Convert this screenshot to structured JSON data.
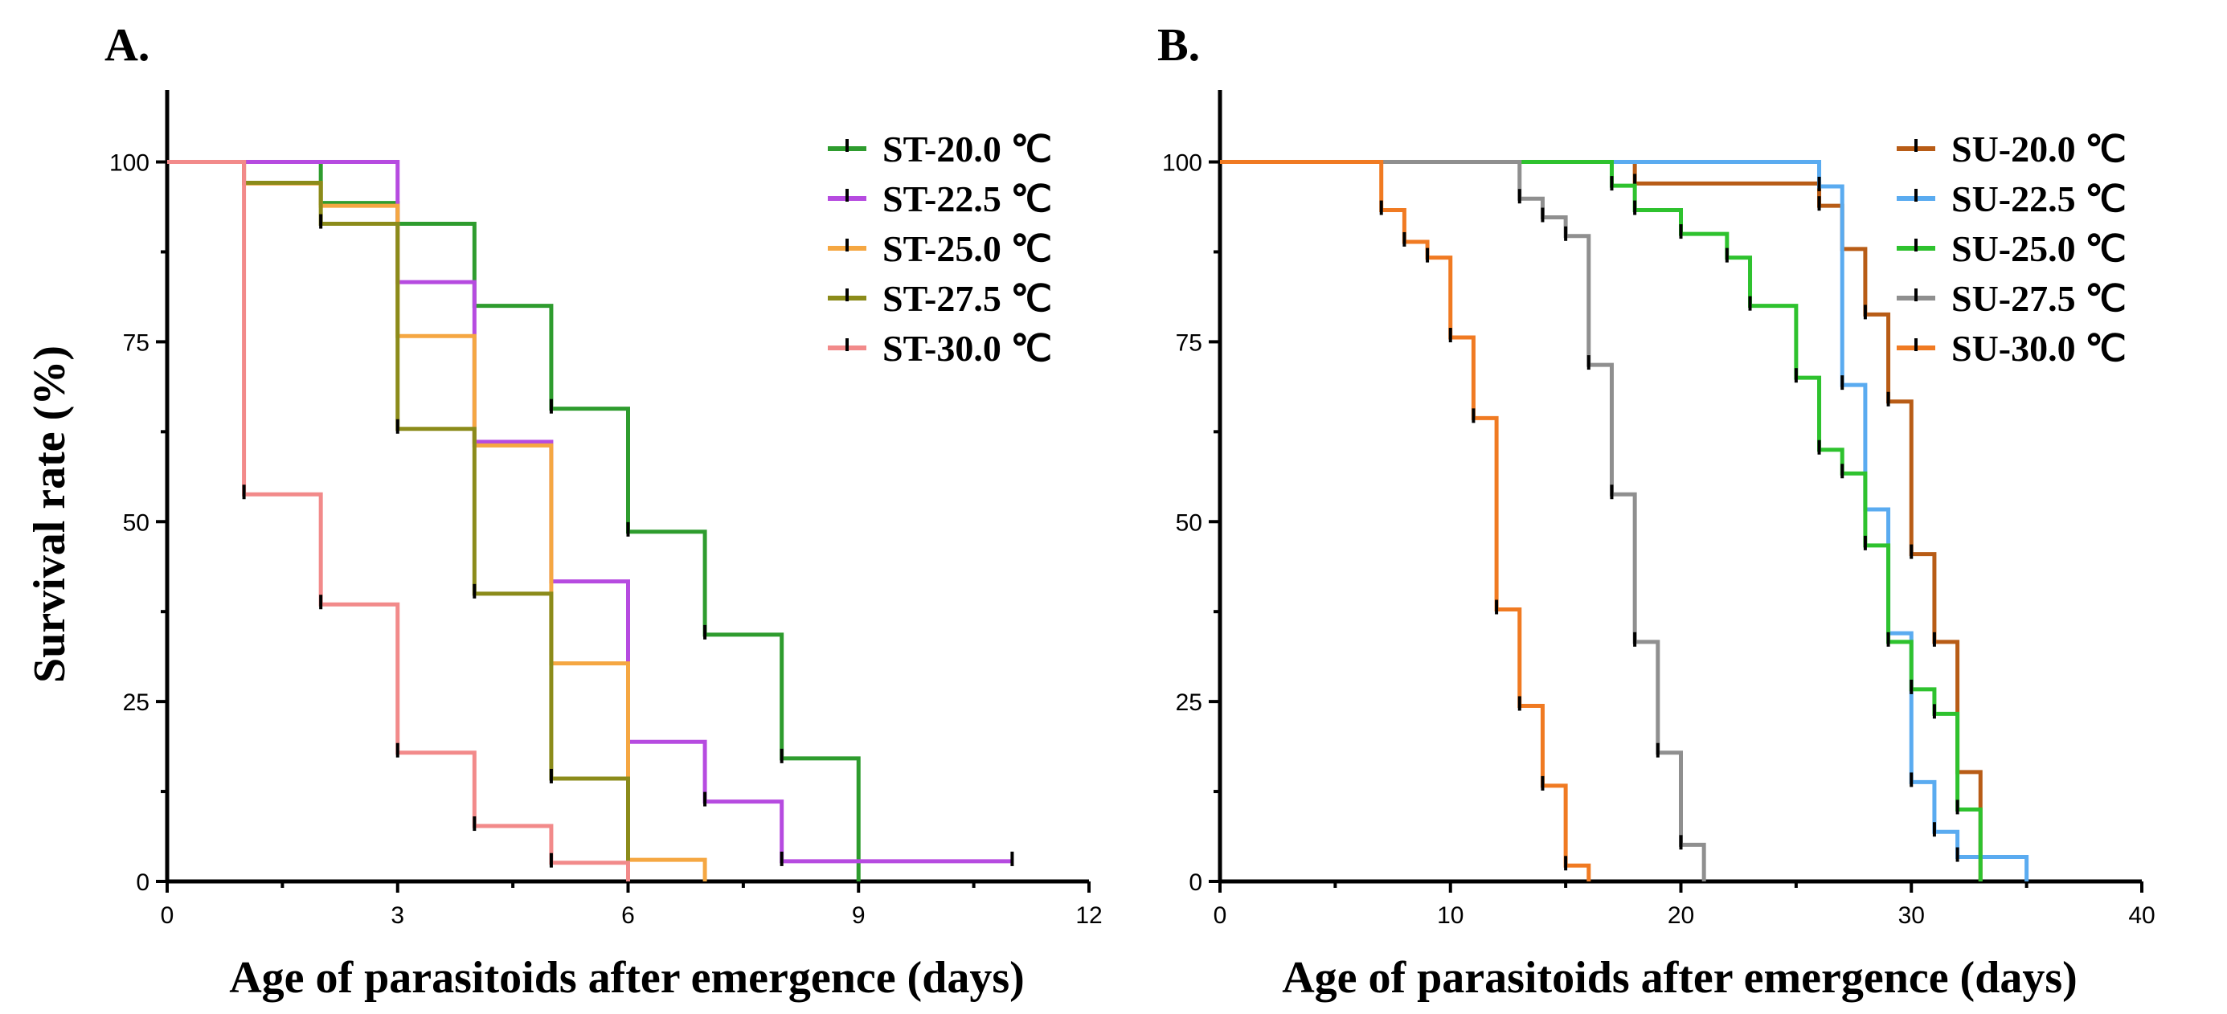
{
  "chart_data": [
    {
      "type": "line",
      "step": "survival",
      "panel_label": "A.",
      "title": "",
      "xlabel": "Age of parasitoids after emergence (days)",
      "ylabel": "Survival rate (%)",
      "xlim": [
        0,
        12
      ],
      "ylim": [
        0,
        110
      ],
      "xticks": [
        0,
        3,
        6,
        9,
        12
      ],
      "yticks": [
        0,
        25,
        50,
        75,
        100
      ],
      "legend_position": "top-right",
      "series": [
        {
          "name": "ST-20.0 ℃",
          "color": "#2e9c2e",
          "x": [
            0,
            2,
            3,
            4,
            5,
            6,
            7,
            8,
            9
          ],
          "y": [
            100,
            94.3,
            91.4,
            80,
            65.7,
            48.6,
            34.3,
            17.1,
            0
          ]
        },
        {
          "name": "ST-22.5 ℃",
          "color": "#b64be0",
          "x": [
            0,
            3,
            4,
            5,
            6,
            7,
            8,
            11
          ],
          "y": [
            100,
            83.3,
            61.1,
            41.7,
            19.4,
            11.1,
            2.8,
            2.8
          ]
        },
        {
          "name": "ST-25.0 ℃",
          "color": "#f5a742",
          "x": [
            0,
            1,
            2,
            3,
            4,
            5,
            6,
            7
          ],
          "y": [
            100,
            97,
            93.9,
            75.8,
            60.6,
            30.3,
            3,
            0
          ]
        },
        {
          "name": "ST-27.5 ℃",
          "color": "#8b8b1a",
          "x": [
            0,
            1,
            2,
            3,
            4,
            5,
            6
          ],
          "y": [
            100,
            97.1,
            91.4,
            62.9,
            40,
            14.3,
            0
          ]
        },
        {
          "name": "ST-30.0 ℃",
          "color": "#f28a8a",
          "x": [
            0,
            1,
            2,
            3,
            4,
            5,
            6
          ],
          "y": [
            100,
            53.8,
            38.5,
            17.9,
            7.7,
            2.6,
            0
          ]
        }
      ]
    },
    {
      "type": "line",
      "step": "survival",
      "panel_label": "B.",
      "title": "",
      "xlabel": "Age of parasitoids after emergence (days)",
      "ylabel": "",
      "xlim": [
        0,
        40
      ],
      "ylim": [
        0,
        110
      ],
      "xticks": [
        0,
        10,
        20,
        30,
        40
      ],
      "yticks": [
        0,
        25,
        50,
        75,
        100
      ],
      "legend_position": "top-right",
      "series": [
        {
          "name": "SU-20.0 ℃",
          "color": "#b85c16",
          "x": [
            0,
            18,
            26,
            27,
            28,
            29,
            30,
            31,
            32,
            33
          ],
          "y": [
            100,
            97,
            93.9,
            87.9,
            78.8,
            66.7,
            45.5,
            33.3,
            15.2,
            0
          ]
        },
        {
          "name": "SU-22.5 ℃",
          "color": "#5aabf0",
          "x": [
            0,
            26,
            27,
            28,
            29,
            30,
            31,
            32,
            33,
            35
          ],
          "y": [
            100,
            96.6,
            69,
            51.7,
            34.5,
            13.8,
            6.9,
            3.4,
            3.4,
            0
          ]
        },
        {
          "name": "SU-25.0 ℃",
          "color": "#2ec22e",
          "x": [
            0,
            17,
            18,
            20,
            22,
            23,
            25,
            26,
            27,
            28,
            29,
            30,
            31,
            32,
            33
          ],
          "y": [
            100,
            96.7,
            93.3,
            90,
            86.7,
            80,
            70,
            60,
            56.7,
            46.7,
            33.3,
            26.7,
            23.3,
            10,
            0
          ]
        },
        {
          "name": "SU-27.5 ℃",
          "color": "#8f8f8f",
          "x": [
            0,
            13,
            14,
            15,
            16,
            17,
            18,
            19,
            20,
            21
          ],
          "y": [
            100,
            94.9,
            92.3,
            89.7,
            71.8,
            53.8,
            33.3,
            17.9,
            5.1,
            0
          ]
        },
        {
          "name": "SU-30.0 ℃",
          "color": "#f07a22",
          "x": [
            0,
            7,
            8,
            9,
            10,
            11,
            12,
            13,
            14,
            15,
            16
          ],
          "y": [
            100,
            93.3,
            88.9,
            86.7,
            75.6,
            64.4,
            37.8,
            24.4,
            13.3,
            2.2,
            0
          ]
        }
      ]
    }
  ]
}
